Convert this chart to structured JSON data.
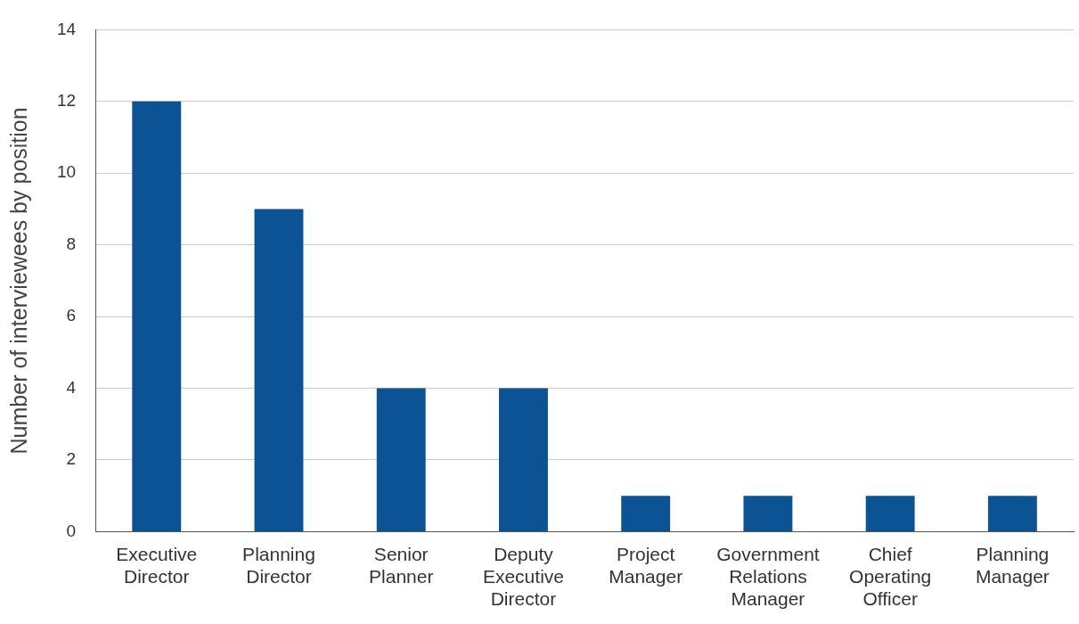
{
  "chart_data": {
    "type": "bar",
    "ylabel": "Number of interviewees by position",
    "categories": [
      "Executive Director",
      "Planning Director",
      "Senior Planner",
      "Deputy Executive Director",
      "Project Manager",
      "Government Relations Manager",
      "Chief Operating Officer",
      "Planning Manager"
    ],
    "values": [
      12,
      9,
      4,
      4,
      1,
      1,
      1,
      1
    ],
    "color": "#0b5394",
    "ylim": [
      0,
      14
    ],
    "yticks": [
      0,
      2,
      4,
      6,
      8,
      10,
      12,
      14
    ],
    "grid": "y"
  }
}
